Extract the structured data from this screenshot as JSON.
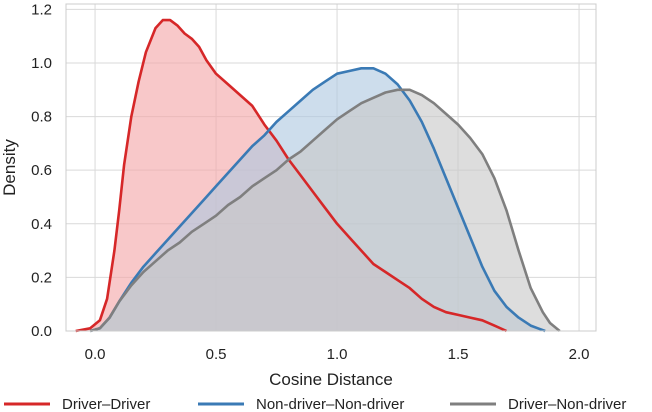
{
  "chart_data": {
    "type": "area",
    "xlabel": "Cosine Distance",
    "ylabel": "Density",
    "xlim": [
      -0.12,
      2.07
    ],
    "ylim": [
      0,
      1.22
    ],
    "x_ticks": [
      "0.0",
      "0.5",
      "1.0",
      "1.5",
      "2.0"
    ],
    "x_tick_values": [
      0.0,
      0.5,
      1.0,
      1.5,
      2.0
    ],
    "y_ticks": [
      "0.0",
      "0.2",
      "0.4",
      "0.6",
      "0.8",
      "1.0",
      "1.2"
    ],
    "y_tick_values": [
      0.0,
      0.2,
      0.4,
      0.6,
      0.8,
      1.0,
      1.2
    ],
    "grid": true,
    "legend_position": "bottom",
    "series": [
      {
        "name": "Driver–Driver",
        "color": "#d62728",
        "fill": "#f4a6a8",
        "points": [
          [
            -0.08,
            0.0
          ],
          [
            -0.02,
            0.01
          ],
          [
            0.02,
            0.04
          ],
          [
            0.05,
            0.12
          ],
          [
            0.08,
            0.3
          ],
          [
            0.1,
            0.45
          ],
          [
            0.12,
            0.62
          ],
          [
            0.15,
            0.8
          ],
          [
            0.18,
            0.93
          ],
          [
            0.21,
            1.04
          ],
          [
            0.25,
            1.13
          ],
          [
            0.28,
            1.16
          ],
          [
            0.31,
            1.16
          ],
          [
            0.34,
            1.14
          ],
          [
            0.37,
            1.11
          ],
          [
            0.4,
            1.09
          ],
          [
            0.43,
            1.06
          ],
          [
            0.46,
            1.01
          ],
          [
            0.5,
            0.96
          ],
          [
            0.55,
            0.92
          ],
          [
            0.6,
            0.88
          ],
          [
            0.65,
            0.84
          ],
          [
            0.7,
            0.77
          ],
          [
            0.75,
            0.71
          ],
          [
            0.8,
            0.64
          ],
          [
            0.85,
            0.58
          ],
          [
            0.9,
            0.52
          ],
          [
            0.95,
            0.46
          ],
          [
            1.0,
            0.4
          ],
          [
            1.05,
            0.35
          ],
          [
            1.1,
            0.3
          ],
          [
            1.15,
            0.25
          ],
          [
            1.2,
            0.22
          ],
          [
            1.25,
            0.19
          ],
          [
            1.3,
            0.16
          ],
          [
            1.35,
            0.12
          ],
          [
            1.4,
            0.09
          ],
          [
            1.45,
            0.07
          ],
          [
            1.5,
            0.06
          ],
          [
            1.55,
            0.05
          ],
          [
            1.6,
            0.04
          ],
          [
            1.65,
            0.02
          ],
          [
            1.7,
            0.0
          ]
        ]
      },
      {
        "name": "Non-driver–Non-driver",
        "color": "#3a7ab5",
        "fill": "#aec8e0",
        "points": [
          [
            -0.02,
            0.0
          ],
          [
            0.02,
            0.01
          ],
          [
            0.06,
            0.05
          ],
          [
            0.1,
            0.11
          ],
          [
            0.15,
            0.18
          ],
          [
            0.2,
            0.24
          ],
          [
            0.25,
            0.29
          ],
          [
            0.3,
            0.34
          ],
          [
            0.35,
            0.39
          ],
          [
            0.4,
            0.44
          ],
          [
            0.45,
            0.49
          ],
          [
            0.5,
            0.54
          ],
          [
            0.55,
            0.59
          ],
          [
            0.6,
            0.64
          ],
          [
            0.65,
            0.69
          ],
          [
            0.7,
            0.73
          ],
          [
            0.75,
            0.78
          ],
          [
            0.8,
            0.82
          ],
          [
            0.85,
            0.86
          ],
          [
            0.9,
            0.9
          ],
          [
            0.95,
            0.93
          ],
          [
            1.0,
            0.96
          ],
          [
            1.05,
            0.97
          ],
          [
            1.1,
            0.98
          ],
          [
            1.15,
            0.98
          ],
          [
            1.2,
            0.96
          ],
          [
            1.25,
            0.92
          ],
          [
            1.3,
            0.86
          ],
          [
            1.35,
            0.78
          ],
          [
            1.4,
            0.68
          ],
          [
            1.45,
            0.57
          ],
          [
            1.5,
            0.46
          ],
          [
            1.55,
            0.35
          ],
          [
            1.6,
            0.24
          ],
          [
            1.65,
            0.15
          ],
          [
            1.7,
            0.09
          ],
          [
            1.75,
            0.05
          ],
          [
            1.8,
            0.02
          ],
          [
            1.83,
            0.01
          ],
          [
            1.86,
            0.0
          ]
        ]
      },
      {
        "name": "Driver–Non-driver",
        "color": "#7f7f7f",
        "fill": "#c8c8c8",
        "points": [
          [
            -0.02,
            0.0
          ],
          [
            0.02,
            0.01
          ],
          [
            0.06,
            0.05
          ],
          [
            0.1,
            0.11
          ],
          [
            0.15,
            0.17
          ],
          [
            0.2,
            0.22
          ],
          [
            0.25,
            0.26
          ],
          [
            0.3,
            0.3
          ],
          [
            0.35,
            0.33
          ],
          [
            0.4,
            0.37
          ],
          [
            0.45,
            0.4
          ],
          [
            0.5,
            0.43
          ],
          [
            0.55,
            0.47
          ],
          [
            0.6,
            0.5
          ],
          [
            0.65,
            0.54
          ],
          [
            0.7,
            0.57
          ],
          [
            0.75,
            0.6
          ],
          [
            0.8,
            0.64
          ],
          [
            0.85,
            0.67
          ],
          [
            0.9,
            0.71
          ],
          [
            0.95,
            0.75
          ],
          [
            1.0,
            0.79
          ],
          [
            1.05,
            0.82
          ],
          [
            1.1,
            0.85
          ],
          [
            1.15,
            0.87
          ],
          [
            1.2,
            0.89
          ],
          [
            1.25,
            0.9
          ],
          [
            1.3,
            0.9
          ],
          [
            1.35,
            0.88
          ],
          [
            1.4,
            0.85
          ],
          [
            1.45,
            0.81
          ],
          [
            1.5,
            0.77
          ],
          [
            1.55,
            0.72
          ],
          [
            1.6,
            0.66
          ],
          [
            1.65,
            0.57
          ],
          [
            1.7,
            0.45
          ],
          [
            1.75,
            0.3
          ],
          [
            1.8,
            0.16
          ],
          [
            1.85,
            0.07
          ],
          [
            1.88,
            0.03
          ],
          [
            1.92,
            0.0
          ]
        ]
      }
    ]
  }
}
